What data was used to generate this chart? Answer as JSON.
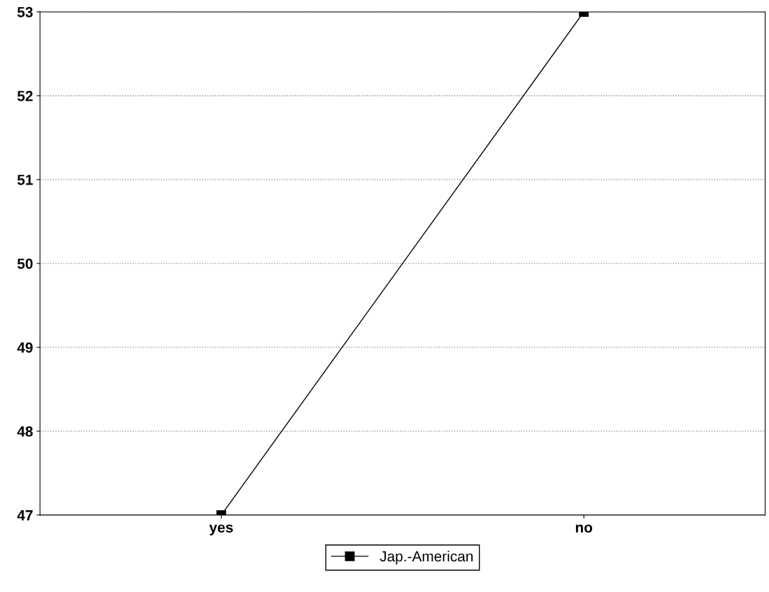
{
  "chart_data": {
    "type": "line",
    "categories": [
      "yes",
      "no"
    ],
    "series": [
      {
        "name": "Jap.-American",
        "color": "#000000",
        "values": [
          47,
          53
        ]
      }
    ],
    "ylim": [
      47,
      53
    ],
    "yticks": [
      47,
      48,
      49,
      50,
      51,
      52,
      53
    ],
    "grid": "y",
    "legend": "bottom",
    "marker": "square",
    "line_style": "solid"
  }
}
